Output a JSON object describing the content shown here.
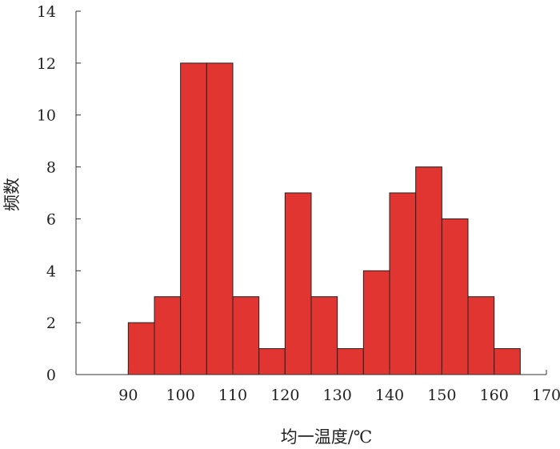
{
  "chart_data": {
    "type": "bar",
    "title": "",
    "xlabel": "均一温度/℃",
    "ylabel": "频数",
    "bins": [
      {
        "x0": 90,
        "x1": 95,
        "value": 2
      },
      {
        "x0": 95,
        "x1": 100,
        "value": 3
      },
      {
        "x0": 100,
        "x1": 105,
        "value": 12
      },
      {
        "x0": 105,
        "x1": 110,
        "value": 12
      },
      {
        "x0": 110,
        "x1": 115,
        "value": 3
      },
      {
        "x0": 115,
        "x1": 120,
        "value": 1
      },
      {
        "x0": 120,
        "x1": 125,
        "value": 7
      },
      {
        "x0": 125,
        "x1": 130,
        "value": 3
      },
      {
        "x0": 130,
        "x1": 135,
        "value": 1
      },
      {
        "x0": 135,
        "x1": 140,
        "value": 4
      },
      {
        "x0": 140,
        "x1": 145,
        "value": 7
      },
      {
        "x0": 145,
        "x1": 150,
        "value": 8
      },
      {
        "x0": 150,
        "x1": 155,
        "value": 6
      },
      {
        "x0": 155,
        "x1": 160,
        "value": 3
      },
      {
        "x0": 160,
        "x1": 165,
        "value": 1
      }
    ],
    "xlim": [
      80,
      170
    ],
    "ylim": [
      0,
      14
    ],
    "xticks": [
      "90",
      "100",
      "110",
      "120",
      "130",
      "140",
      "150",
      "160",
      "170"
    ],
    "yticks": [
      "0",
      "2",
      "4",
      "6",
      "8",
      "10",
      "12",
      "14"
    ],
    "bar_color": "#e03530",
    "edge_color": "#222222",
    "grid": false,
    "legend": "none"
  }
}
